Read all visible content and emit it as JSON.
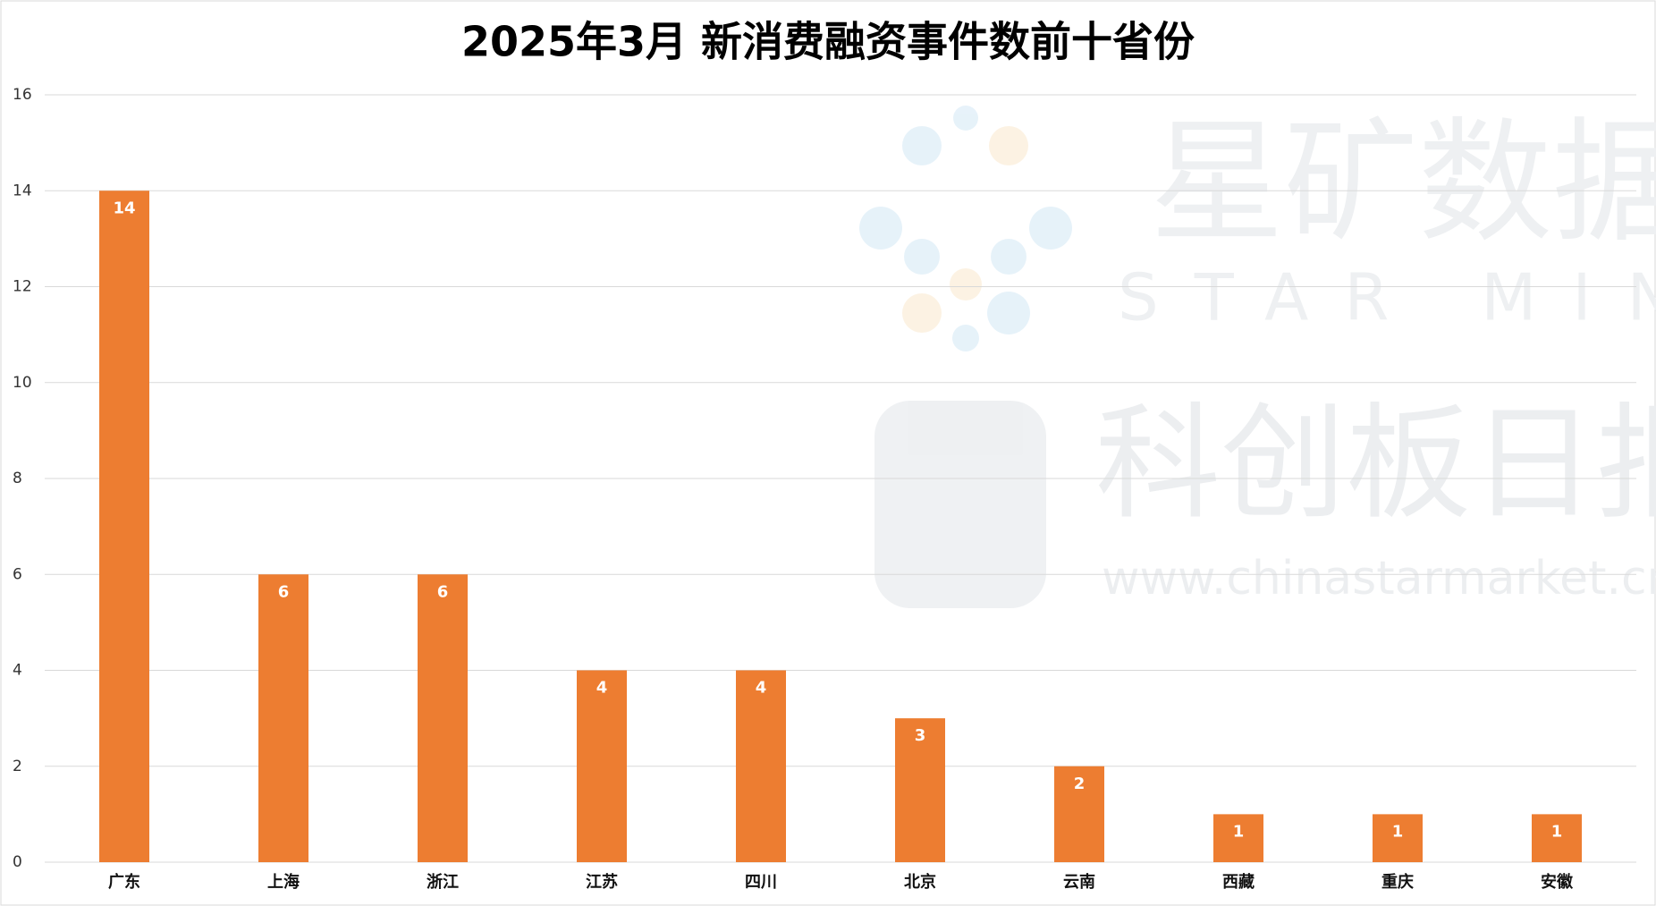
{
  "chart_data": {
    "type": "bar",
    "title": "2025年3月 新消费融资事件数前十省份",
    "categories": [
      "广东",
      "上海",
      "浙江",
      "江苏",
      "四川",
      "北京",
      "云南",
      "西藏",
      "重庆",
      "安徽"
    ],
    "values": [
      14,
      6,
      6,
      4,
      4,
      3,
      2,
      1,
      1,
      1
    ],
    "color": "#ed7d31",
    "ylim": [
      0,
      16
    ],
    "yticks": [
      0,
      2,
      4,
      6,
      8,
      10,
      12,
      14,
      16
    ],
    "grid": true,
    "watermark": [
      "星矿数据",
      "STAR MINE",
      "科创板日报",
      "www.chinastarmarket.cn"
    ]
  }
}
